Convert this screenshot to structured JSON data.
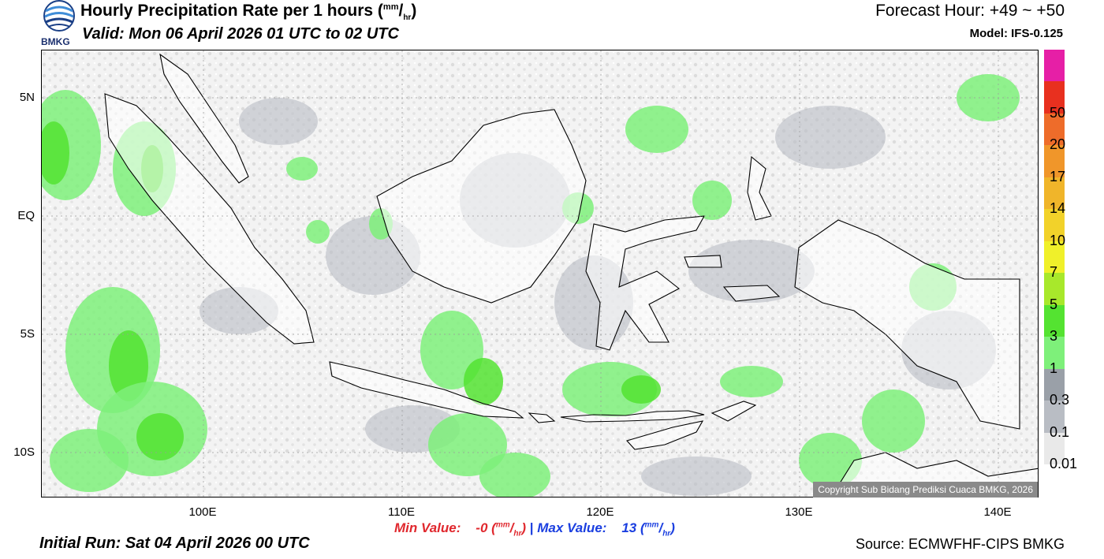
{
  "header": {
    "title": "Hourly Precipitation Rate per 1 hours",
    "title_unit_num": "mm",
    "title_unit_den": "hr",
    "valid": "Valid: Mon 06 April 2026 01 UTC to 02 UTC",
    "forecast_hour": "Forecast Hour: +49 ~ +50",
    "model": "Model: IFS-0.125"
  },
  "logo": {
    "text": "BMKG"
  },
  "map": {
    "lat_labels": [
      "5N",
      "EQ",
      "5S",
      "10S"
    ],
    "lon_labels": [
      "100E",
      "110E",
      "120E",
      "130E",
      "140E"
    ],
    "copyright": "Copyright Sub Bidang Prediksi Cuaca BMKG, 2026"
  },
  "legend": {
    "levels": [
      "0.01",
      "0.1",
      "0.3",
      "1",
      "3",
      "5",
      "7",
      "10",
      "14",
      "17",
      "20",
      "50"
    ],
    "colors": [
      "#e9e9e9",
      "#b9bdc4",
      "#9aa0a8",
      "#7ef07a",
      "#54e331",
      "#a8e82b",
      "#f0f02a",
      "#f2d22a",
      "#f0b52a",
      "#f0962a",
      "#ee6c2a",
      "#e8301f",
      "#e61fa6"
    ]
  },
  "stats": {
    "min_label": "Min Value:",
    "min_value": "-0",
    "separator": "|",
    "max_label": "Max Value:",
    "max_value": "13",
    "unit_num": "mm",
    "unit_den": "hr"
  },
  "footer": {
    "initial_run": "Initial Run: Sat 04 April 2026 00 UTC",
    "source": "Source: ECMWFHF-CIPS BMKG"
  }
}
